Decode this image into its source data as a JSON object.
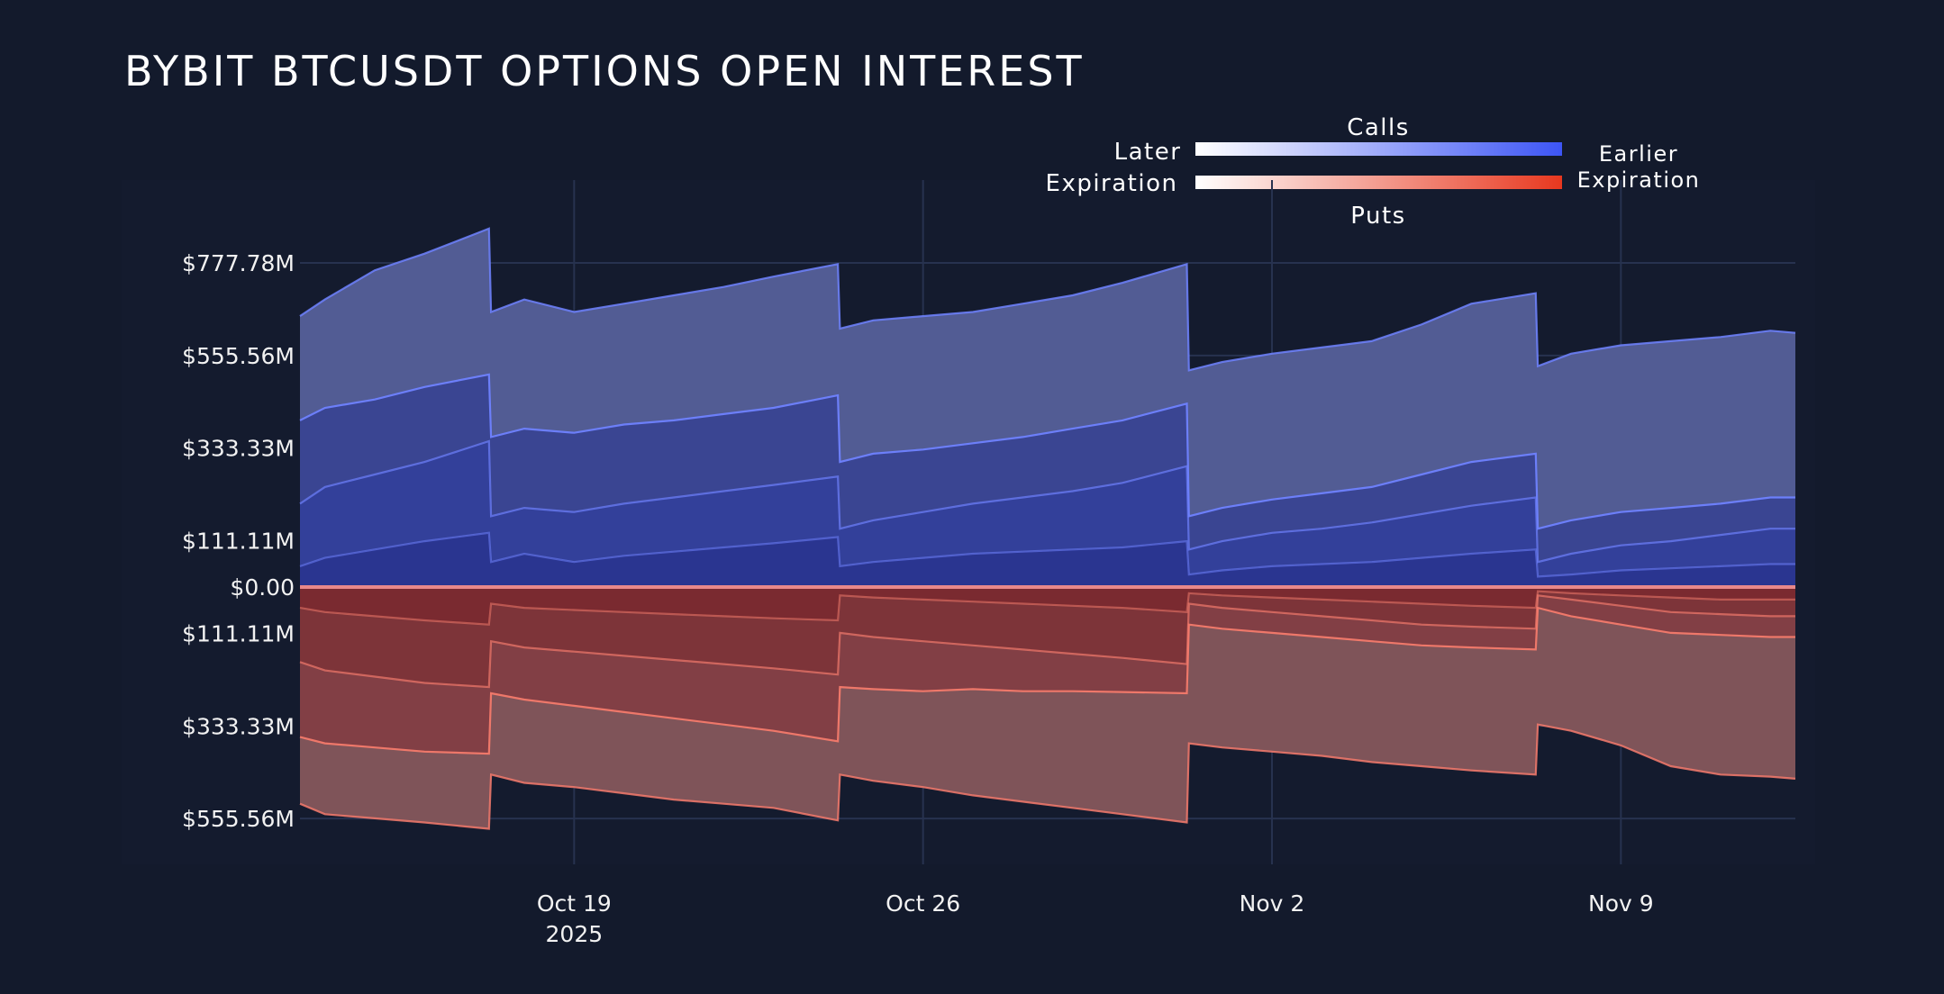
{
  "chart_data": {
    "type": "area",
    "title": "BYBIT BTCUSDT OPTIONS OPEN INTEREST",
    "legend": {
      "calls_label": "Calls",
      "puts_label": "Puts",
      "left_label_1": "Later",
      "left_label_2": "Expiration",
      "right_label_1": "Earlier",
      "right_label_2": "Expiration",
      "placement": "top-right"
    },
    "colors": {
      "background": "#131a2c",
      "calls_gradient": [
        "#ffffff",
        "#3d55f5"
      ],
      "puts_gradient": [
        "#ffffff",
        "#e8381f"
      ],
      "call_fills": [
        "#2a3590",
        "#33409a",
        "#3a4592",
        "#525c94"
      ],
      "put_fills": [
        "#7a2a30",
        "#7d3439",
        "#823f45",
        "#7f5459"
      ],
      "call_line": "#6f82ff",
      "put_line": "#f47a6c"
    },
    "x_ticks": [
      {
        "date": "2025-10-19T00:00:00Z",
        "label": "Oct 19",
        "sublabel": "2025"
      },
      {
        "date": "2025-10-26T00:00:00Z",
        "label": "Oct 26"
      },
      {
        "date": "2025-11-02T00:00:00Z",
        "label": "Nov 2"
      },
      {
        "date": "2025-11-09T00:00:00Z",
        "label": "Nov 9"
      }
    ],
    "xlim": [
      "2025-10-13T12:00:00Z",
      "2025-11-12T12:00:00Z"
    ],
    "ylim_millions": [
      -555.56,
      870
    ],
    "y_ticks": [
      {
        "value": 777.78,
        "label": "$777.78M"
      },
      {
        "value": 555.56,
        "label": "$555.56M"
      },
      {
        "value": 333.33,
        "label": "$333.33M"
      },
      {
        "value": 111.11,
        "label": "$111.11M"
      },
      {
        "value": 0,
        "label": "$0.00"
      },
      {
        "value": -111.11,
        "label": "$111.11M"
      },
      {
        "value": -333.33,
        "label": "$333.33M"
      },
      {
        "value": -555.56,
        "label": "$555.56M"
      }
    ],
    "grid": true,
    "x": [
      "2025-10-13T12:00:00Z",
      "2025-10-14T00:00:00Z",
      "2025-10-15T00:00:00Z",
      "2025-10-16T00:00:00Z",
      "2025-10-17T07:00:00Z",
      "2025-10-17T08:00:00Z",
      "2025-10-18T00:00:00Z",
      "2025-10-19T00:00:00Z",
      "2025-10-20T00:00:00Z",
      "2025-10-21T00:00:00Z",
      "2025-10-22T00:00:00Z",
      "2025-10-23T00:00:00Z",
      "2025-10-24T07:00:00Z",
      "2025-10-24T08:00:00Z",
      "2025-10-25T00:00:00Z",
      "2025-10-26T00:00:00Z",
      "2025-10-27T00:00:00Z",
      "2025-10-28T00:00:00Z",
      "2025-10-29T00:00:00Z",
      "2025-10-30T00:00:00Z",
      "2025-10-31T07:00:00Z",
      "2025-10-31T08:00:00Z",
      "2025-11-01T00:00:00Z",
      "2025-11-02T00:00:00Z",
      "2025-11-03T00:00:00Z",
      "2025-11-04T00:00:00Z",
      "2025-11-05T00:00:00Z",
      "2025-11-06T00:00:00Z",
      "2025-11-07T07:00:00Z",
      "2025-11-07T08:00:00Z",
      "2025-11-08T00:00:00Z",
      "2025-11-09T00:00:00Z",
      "2025-11-10T00:00:00Z",
      "2025-11-11T00:00:00Z",
      "2025-11-12T00:00:00Z",
      "2025-11-12T12:00:00Z"
    ],
    "calls_cumulative_millions": [
      [
        50,
        70,
        90,
        110,
        130,
        60,
        80,
        60,
        75,
        85,
        95,
        105,
        120,
        50,
        60,
        70,
        80,
        85,
        90,
        95,
        110,
        30,
        40,
        50,
        55,
        60,
        70,
        80,
        90,
        25,
        30,
        40,
        45,
        50,
        55,
        55
      ],
      [
        200,
        240,
        270,
        300,
        350,
        170,
        190,
        180,
        200,
        215,
        230,
        245,
        265,
        140,
        160,
        180,
        200,
        215,
        230,
        250,
        290,
        90,
        110,
        130,
        140,
        155,
        175,
        195,
        215,
        60,
        80,
        100,
        110,
        125,
        140,
        140
      ],
      [
        400,
        430,
        450,
        480,
        510,
        360,
        380,
        370,
        390,
        400,
        415,
        430,
        460,
        300,
        320,
        330,
        345,
        360,
        380,
        400,
        440,
        170,
        190,
        210,
        225,
        240,
        270,
        300,
        320,
        140,
        160,
        180,
        190,
        200,
        215,
        215
      ],
      [
        650,
        690,
        760,
        800,
        860,
        660,
        690,
        660,
        680,
        700,
        720,
        745,
        775,
        620,
        640,
        650,
        660,
        680,
        700,
        730,
        775,
        520,
        540,
        560,
        575,
        590,
        630,
        680,
        705,
        530,
        560,
        580,
        590,
        600,
        615,
        610
      ]
    ],
    "puts_cumulative_millions": [
      [
        50,
        60,
        70,
        80,
        90,
        40,
        50,
        55,
        60,
        65,
        70,
        75,
        80,
        20,
        25,
        30,
        35,
        40,
        45,
        50,
        60,
        15,
        20,
        25,
        30,
        35,
        40,
        45,
        50,
        10,
        15,
        20,
        25,
        30,
        30,
        30
      ],
      [
        180,
        200,
        215,
        230,
        240,
        130,
        145,
        155,
        165,
        175,
        185,
        195,
        210,
        110,
        120,
        130,
        140,
        150,
        160,
        170,
        185,
        40,
        50,
        60,
        70,
        80,
        90,
        95,
        100,
        20,
        30,
        45,
        60,
        65,
        70,
        70
      ],
      [
        360,
        375,
        385,
        395,
        400,
        255,
        270,
        285,
        300,
        315,
        330,
        345,
        370,
        240,
        245,
        250,
        245,
        250,
        250,
        252,
        255,
        90,
        100,
        110,
        120,
        130,
        140,
        145,
        150,
        50,
        70,
        90,
        110,
        115,
        120,
        120
      ],
      [
        520,
        545,
        555,
        565,
        580,
        450,
        470,
        480,
        495,
        510,
        520,
        530,
        560,
        450,
        465,
        480,
        500,
        515,
        530,
        545,
        565,
        375,
        385,
        395,
        405,
        420,
        430,
        440,
        450,
        330,
        345,
        380,
        430,
        450,
        455,
        460
      ]
    ]
  }
}
